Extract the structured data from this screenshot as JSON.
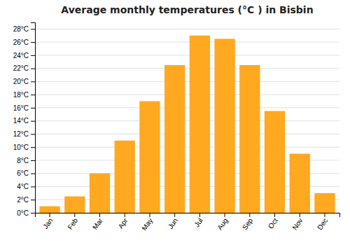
{
  "chart_data": {
    "type": "bar",
    "title": "Average monthly temperatures (°C ) in Bisbin",
    "categories": [
      "Jan",
      "Feb",
      "Mar",
      "Apr",
      "May",
      "Jun",
      "Jul",
      "Aug",
      "Sep",
      "Oct",
      "Nov",
      "Dec"
    ],
    "values": [
      1,
      2.5,
      6,
      11,
      17,
      22.5,
      27,
      26.5,
      22.5,
      15.5,
      9,
      3
    ],
    "color": "#FFA820",
    "ylim": [
      0,
      29
    ],
    "yticks": [
      {
        "value": 0,
        "label": "0°C"
      },
      {
        "value": 2,
        "label": "2°C"
      },
      {
        "value": 4,
        "label": "4°C"
      },
      {
        "value": 6,
        "label": "6°C"
      },
      {
        "value": 8,
        "label": "8°C"
      },
      {
        "value": 10,
        "label": "10°C"
      },
      {
        "value": 12,
        "label": "12°C"
      },
      {
        "value": 14,
        "label": "14°C"
      },
      {
        "value": 16,
        "label": "16°C"
      },
      {
        "value": 18,
        "label": "18°C"
      },
      {
        "value": 20,
        "label": "20°C"
      },
      {
        "value": 22,
        "label": "22°C"
      },
      {
        "value": 24,
        "label": "24°C"
      },
      {
        "value": 26,
        "label": "26°C"
      },
      {
        "value": 28,
        "label": "28°C"
      }
    ],
    "grid": true
  }
}
